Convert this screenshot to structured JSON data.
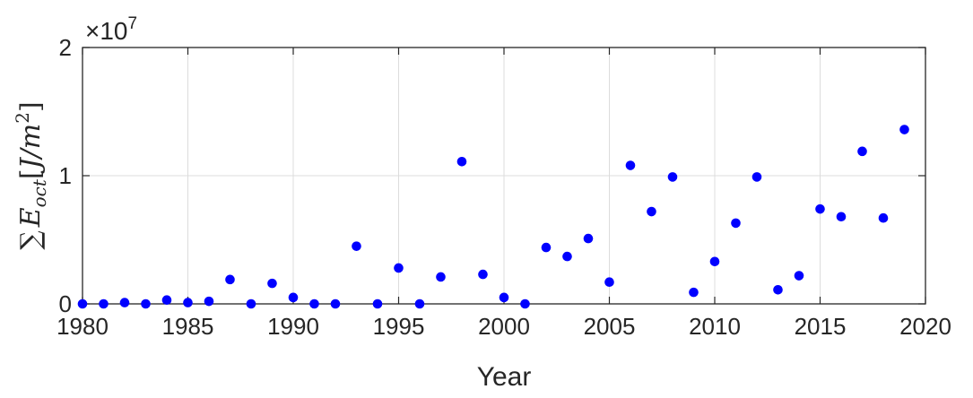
{
  "chart_data": {
    "type": "scatter",
    "title": "",
    "xlabel": "Year",
    "ylabel": "∑ E_oct [J/m²]",
    "ylabel_parts": {
      "sum": "∑",
      "E": "E",
      "sub": "oct",
      "unit_open": "[",
      "unit": "J/m",
      "sup": "2",
      "unit_close": "]"
    },
    "y_multiplier": "×10",
    "y_multiplier_exponent": "7",
    "xlim": [
      1980,
      2020
    ],
    "ylim": [
      0,
      20000000
    ],
    "xticks": [
      1980,
      1985,
      1990,
      1995,
      2000,
      2005,
      2010,
      2015,
      2020
    ],
    "xtick_labels": [
      "1980",
      "1985",
      "1990",
      "1995",
      "2000",
      "2005",
      "2010",
      "2015",
      "2020"
    ],
    "yticks": [
      0,
      10000000,
      20000000
    ],
    "ytick_labels": [
      "0",
      "1",
      "2"
    ],
    "grid": true,
    "legend": "none",
    "marker_color": "#0000ff",
    "x": [
      1980,
      1981,
      1982,
      1983,
      1984,
      1985,
      1986,
      1987,
      1988,
      1989,
      1990,
      1991,
      1992,
      1993,
      1994,
      1995,
      1996,
      1997,
      1998,
      1999,
      2000,
      2001,
      2002,
      2003,
      2004,
      2005,
      2006,
      2007,
      2008,
      2009,
      2010,
      2011,
      2012,
      2013,
      2014,
      2015,
      2016,
      2017,
      2018,
      2019
    ],
    "y": [
      0,
      0,
      100000,
      0,
      300000,
      100000,
      200000,
      1900000,
      0,
      1600000,
      500000,
      0,
      0,
      4500000,
      0,
      2800000,
      0,
      2100000,
      11100000,
      2300000,
      500000,
      0,
      4400000,
      3700000,
      5100000,
      1700000,
      10800000,
      7200000,
      9900000,
      900000,
      3300000,
      6300000,
      9900000,
      1100000,
      2200000,
      7400000,
      6800000,
      11900000,
      6700000,
      13600000
    ]
  }
}
